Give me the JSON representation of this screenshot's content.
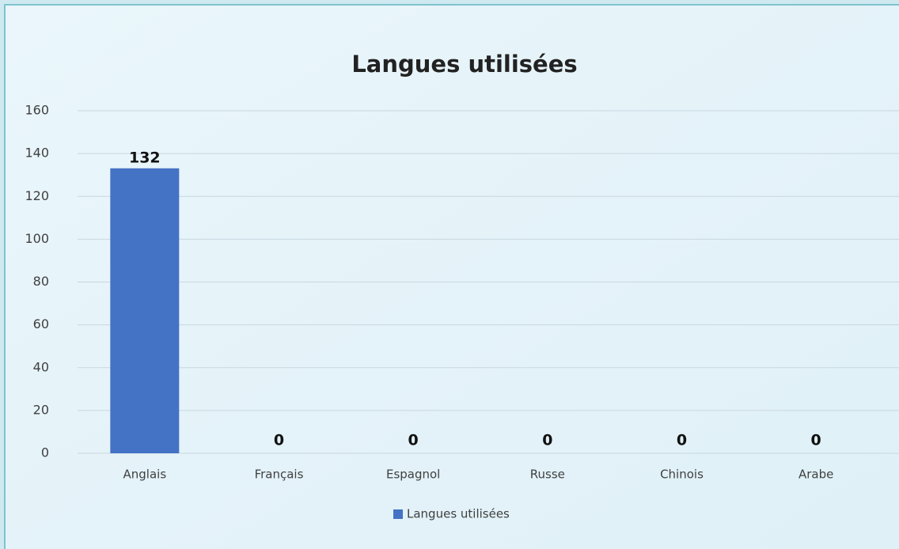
{
  "chart_data": {
    "type": "bar",
    "title": "Langues utilisées",
    "categories": [
      "Anglais",
      "Français",
      "Espagnol",
      "Russe",
      "Chinois",
      "Arabe"
    ],
    "series": [
      {
        "name": "Langues utilisées",
        "color": "#4472c4",
        "values": [
          132,
          0,
          0,
          0,
          0,
          0
        ]
      }
    ],
    "ylim": [
      0,
      160
    ],
    "yticks": [
      0,
      20,
      40,
      60,
      80,
      100,
      120,
      140,
      160
    ],
    "grid": true,
    "legend": "bottom"
  }
}
